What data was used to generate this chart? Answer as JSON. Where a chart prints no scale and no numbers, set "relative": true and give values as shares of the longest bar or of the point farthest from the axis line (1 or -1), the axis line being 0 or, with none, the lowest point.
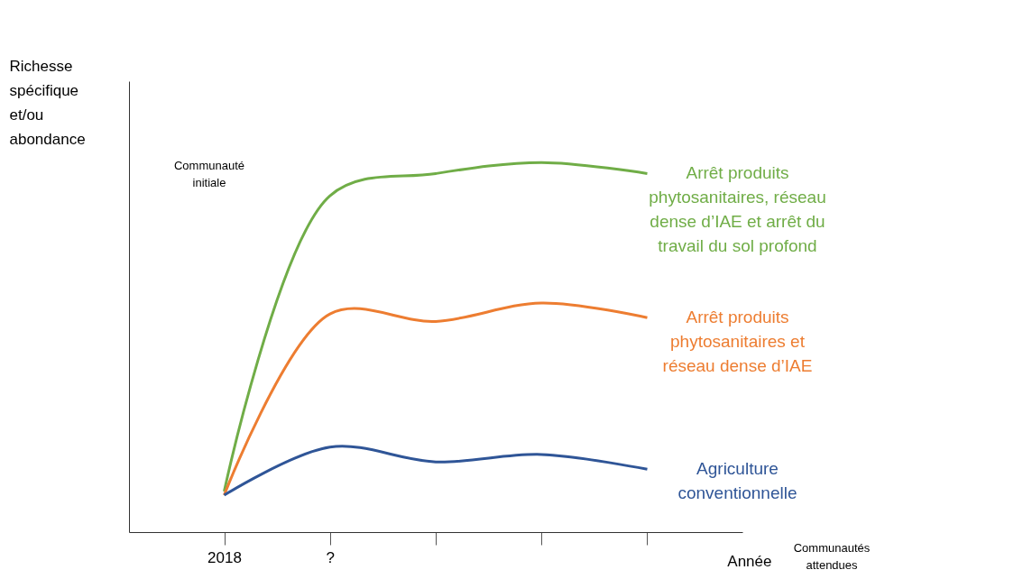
{
  "chart_data": {
    "type": "line",
    "relative": true,
    "ylabel": "Richesse spécifique et/ou abondance",
    "xlabel": "Année",
    "categories": [
      "2018",
      "?",
      null,
      null,
      null
    ],
    "series": [
      {
        "name": "Arrêt produits phytosanitaires, réseau dense d’IAE et arrêt du travail du sol profond",
        "color": "#70ad47",
        "values": [
          0.11,
          0.91,
          0.97,
          1.0,
          0.97
        ]
      },
      {
        "name": "Arrêt produits phytosanitaires et réseau dense d’IAE",
        "color": "#ed7d31",
        "values": [
          0.1,
          0.59,
          0.57,
          0.62,
          0.58
        ]
      },
      {
        "name": "Agriculture conventionnelle",
        "color": "#2f5597",
        "values": [
          0.1,
          0.23,
          0.19,
          0.21,
          0.17
        ]
      }
    ],
    "annotations": [
      "Communauté initiale",
      "Communautés attendues"
    ],
    "tick_labels": "x",
    "grid": false,
    "legend": false,
    "marker": "none",
    "line_style": "solid"
  }
}
